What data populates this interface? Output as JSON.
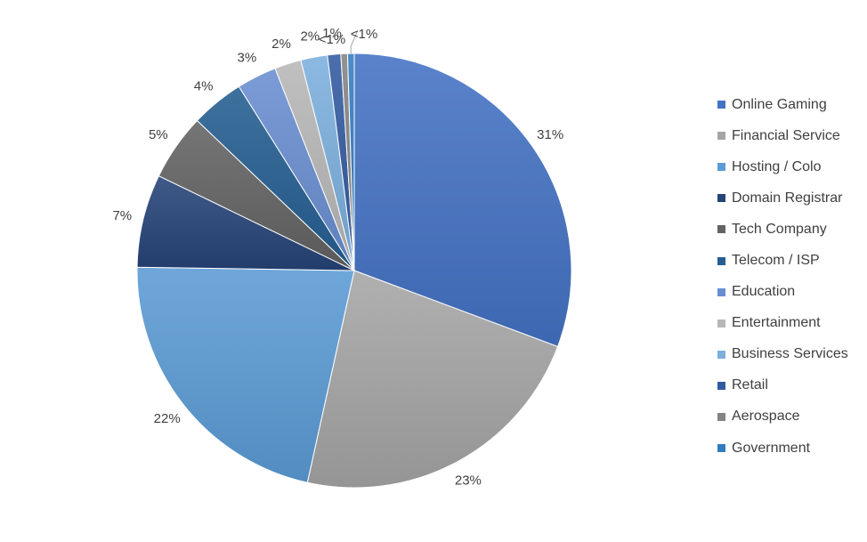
{
  "chart_data": {
    "type": "pie",
    "title": "",
    "legend_position": "right",
    "slices": [
      {
        "name": "Online Gaming",
        "value": 31,
        "label": "31%",
        "color": "#4472c4"
      },
      {
        "name": "Financial Service",
        "value": 23,
        "label": "23%",
        "color": "#a5a5a5"
      },
      {
        "name": "Hosting / Colo",
        "value": 22,
        "label": "22%",
        "color": "#5b9bd5"
      },
      {
        "name": "Domain Registrar",
        "value": 7,
        "label": "7%",
        "color": "#264478"
      },
      {
        "name": "Tech Company",
        "value": 5,
        "label": "5%",
        "color": "#636363"
      },
      {
        "name": "Telecom / ISP",
        "value": 4,
        "label": "4%",
        "color": "#255e91"
      },
      {
        "name": "Education",
        "value": 3,
        "label": "3%",
        "color": "#698ed0"
      },
      {
        "name": "Entertainment",
        "value": 2,
        "label": "2%",
        "color": "#b7b7b7"
      },
      {
        "name": "Business Services",
        "value": 2,
        "label": "2%",
        "color": "#7cafdd"
      },
      {
        "name": "Retail",
        "value": 1,
        "label": "1%",
        "color": "#335aa1"
      },
      {
        "name": "Aerospace",
        "value": 0.5,
        "label": "<1%",
        "color": "#848484"
      },
      {
        "name": "Government",
        "value": 0.5,
        "label": "<1%",
        "color": "#327dc2"
      }
    ]
  }
}
